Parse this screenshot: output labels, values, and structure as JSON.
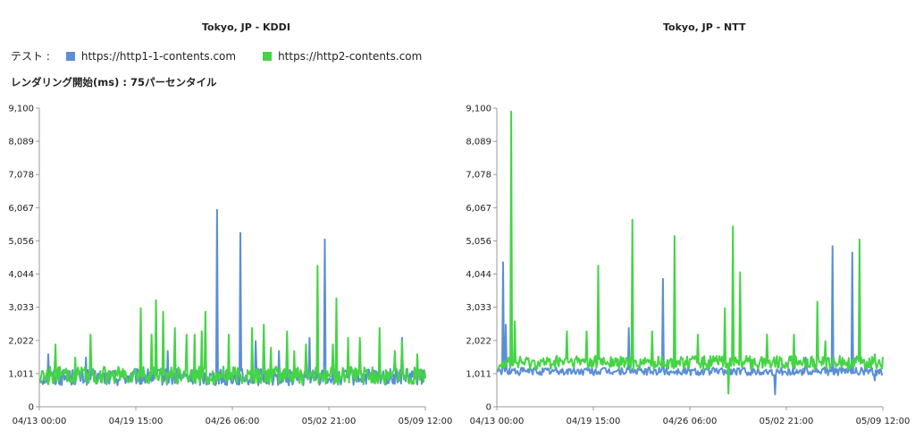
{
  "legend": {
    "label": "テスト :",
    "items": [
      {
        "name": "https://http1-1-contents.com",
        "color": "#5b8fd4"
      },
      {
        "name": "https://http2-contents.com",
        "color": "#45d445"
      }
    ]
  },
  "metric_label": "レンダリング開始(ms) : 75パーセンタイル",
  "chart_data": [
    {
      "type": "line",
      "title": "Tokyo, JP - KDDI",
      "y_ticks": [
        "0",
        "1,011",
        "2,022",
        "3,033",
        "4,044",
        "5,056",
        "6,067",
        "7,078",
        "8,089",
        "9,100"
      ],
      "ylim": [
        0,
        9100
      ],
      "x_ticks": [
        "04/13 00:00",
        "04/19 15:00",
        "04/26 06:00",
        "05/02 21:00",
        "05/09 12:00"
      ],
      "grid": false,
      "series": [
        {
          "name": "https://http1-1-contents.com",
          "color": "#5b8fd4",
          "baseline": 900,
          "noise": 250,
          "spikes": [
            [
              0.02,
              1600
            ],
            [
              0.12,
              1500
            ],
            [
              0.33,
              1700
            ],
            [
              0.46,
              6000
            ],
            [
              0.52,
              5300
            ],
            [
              0.56,
              2000
            ],
            [
              0.62,
              1700
            ],
            [
              0.7,
              2100
            ],
            [
              0.74,
              5100
            ],
            [
              0.8,
              1600
            ],
            [
              0.94,
              2100
            ]
          ]
        },
        {
          "name": "https://http2-contents.com",
          "color": "#45d445",
          "baseline": 950,
          "noise": 280,
          "spikes": [
            [
              0.04,
              1900
            ],
            [
              0.09,
              1500
            ],
            [
              0.13,
              2200
            ],
            [
              0.26,
              3000
            ],
            [
              0.29,
              2200
            ],
            [
              0.3,
              3250
            ],
            [
              0.32,
              2900
            ],
            [
              0.35,
              2400
            ],
            [
              0.38,
              2200
            ],
            [
              0.4,
              2200
            ],
            [
              0.42,
              2300
            ],
            [
              0.43,
              2900
            ],
            [
              0.49,
              2200
            ],
            [
              0.55,
              2400
            ],
            [
              0.58,
              2500
            ],
            [
              0.6,
              1800
            ],
            [
              0.64,
              2300
            ],
            [
              0.66,
              1700
            ],
            [
              0.69,
              1900
            ],
            [
              0.72,
              4300
            ],
            [
              0.76,
              1900
            ],
            [
              0.77,
              3300
            ],
            [
              0.8,
              2100
            ],
            [
              0.83,
              2100
            ],
            [
              0.88,
              2400
            ],
            [
              0.92,
              1700
            ],
            [
              0.94,
              2000
            ],
            [
              0.98,
              1600
            ]
          ]
        }
      ]
    },
    {
      "type": "line",
      "title": "Tokyo, JP - NTT",
      "y_ticks": [
        "0",
        "1,011",
        "2,022",
        "3,033",
        "4,044",
        "5,056",
        "6,067",
        "7,078",
        "8,089",
        "9,100"
      ],
      "ylim": [
        0,
        9100
      ],
      "x_ticks": [
        "04/13 00:00",
        "04/19 15:00",
        "04/26 06:00",
        "05/02 21:00",
        "05/09 12:00"
      ],
      "grid": false,
      "series": [
        {
          "name": "https://http1-1-contents.com",
          "color": "#5b8fd4",
          "baseline": 1080,
          "noise": 120,
          "spikes": [
            [
              0.015,
              4400
            ],
            [
              0.02,
              2500
            ],
            [
              0.34,
              2400
            ],
            [
              0.43,
              3900
            ],
            [
              0.72,
              380
            ],
            [
              0.8,
              1500
            ],
            [
              0.87,
              4900
            ],
            [
              0.92,
              4700
            ],
            [
              0.98,
              800
            ]
          ]
        },
        {
          "name": "https://http2-contents.com",
          "color": "#45d445",
          "baseline": 1350,
          "noise": 200,
          "spikes": [
            [
              0.035,
              9000
            ],
            [
              0.045,
              2600
            ],
            [
              0.18,
              2300
            ],
            [
              0.23,
              2300
            ],
            [
              0.26,
              4300
            ],
            [
              0.35,
              5700
            ],
            [
              0.4,
              2300
            ],
            [
              0.46,
              5200
            ],
            [
              0.52,
              2200
            ],
            [
              0.59,
              3000
            ],
            [
              0.6,
              3300
            ],
            [
              0.61,
              5500
            ],
            [
              0.63,
              4100
            ],
            [
              0.6,
              400
            ],
            [
              0.7,
              2200
            ],
            [
              0.77,
              2200
            ],
            [
              0.83,
              3200
            ],
            [
              0.85,
              2000
            ],
            [
              0.94,
              5100
            ],
            [
              0.98,
              1600
            ]
          ]
        }
      ]
    }
  ]
}
